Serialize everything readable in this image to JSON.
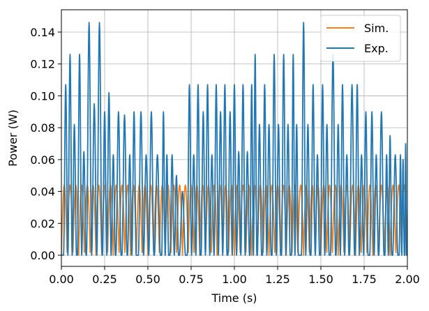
{
  "chart_data": {
    "type": "line",
    "xlabel": "Time (s)",
    "ylabel": "Power (W)",
    "xlim": [
      0,
      2
    ],
    "ylim": [
      -0.007,
      0.154
    ],
    "grid": true,
    "legend_position": "top-right",
    "x_ticks": [
      0,
      0.25,
      0.5,
      0.75,
      1.0,
      1.25,
      1.5,
      1.75,
      2.0
    ],
    "x_tick_labels": [
      "0.00",
      "0.25",
      "0.50",
      "0.75",
      "1.00",
      "1.25",
      "1.50",
      "1.75",
      "2.00"
    ],
    "y_ticks": [
      0,
      0.02,
      0.04,
      0.06,
      0.08,
      0.1,
      0.12,
      0.14
    ],
    "y_tick_labels": [
      "0.00",
      "0.02",
      "0.04",
      "0.06",
      "0.08",
      "0.10",
      "0.12",
      "0.14"
    ],
    "series": [
      {
        "name": "Sim.",
        "color": "#ff7f0e",
        "waveform": "rectified-sine",
        "amplitude": 0.044,
        "cycles": 60,
        "x_range": [
          0,
          2
        ]
      },
      {
        "name": "Exp.",
        "color": "#1f77b4",
        "peaks": [
          {
            "t": 0.025,
            "p": 0.107
          },
          {
            "t": 0.05,
            "p": 0.126
          },
          {
            "t": 0.075,
            "p": 0.082
          },
          {
            "t": 0.105,
            "p": 0.126
          },
          {
            "t": 0.13,
            "p": 0.065
          },
          {
            "t": 0.16,
            "p": 0.146
          },
          {
            "t": 0.19,
            "p": 0.095
          },
          {
            "t": 0.22,
            "p": 0.146
          },
          {
            "t": 0.25,
            "p": 0.09
          },
          {
            "t": 0.275,
            "p": 0.102
          },
          {
            "t": 0.3,
            "p": 0.063
          },
          {
            "t": 0.33,
            "p": 0.09
          },
          {
            "t": 0.365,
            "p": 0.088
          },
          {
            "t": 0.395,
            "p": 0.063
          },
          {
            "t": 0.42,
            "p": 0.09
          },
          {
            "t": 0.46,
            "p": 0.09
          },
          {
            "t": 0.49,
            "p": 0.063
          },
          {
            "t": 0.52,
            "p": 0.09
          },
          {
            "t": 0.555,
            "p": 0.063
          },
          {
            "t": 0.59,
            "p": 0.09
          },
          {
            "t": 0.61,
            "p": 0.063
          },
          {
            "t": 0.64,
            "p": 0.063
          },
          {
            "t": 0.665,
            "p": 0.05
          },
          {
            "t": 0.7,
            "p": 0.04
          },
          {
            "t": 0.74,
            "p": 0.107
          },
          {
            "t": 0.765,
            "p": 0.063
          },
          {
            "t": 0.79,
            "p": 0.107
          },
          {
            "t": 0.82,
            "p": 0.09
          },
          {
            "t": 0.845,
            "p": 0.107
          },
          {
            "t": 0.87,
            "p": 0.063
          },
          {
            "t": 0.895,
            "p": 0.107
          },
          {
            "t": 0.92,
            "p": 0.09
          },
          {
            "t": 0.945,
            "p": 0.107
          },
          {
            "t": 0.975,
            "p": 0.09
          },
          {
            "t": 1.0,
            "p": 0.107
          },
          {
            "t": 1.025,
            "p": 0.065
          },
          {
            "t": 1.05,
            "p": 0.107
          },
          {
            "t": 1.075,
            "p": 0.065
          },
          {
            "t": 1.1,
            "p": 0.107
          },
          {
            "t": 1.12,
            "p": 0.126
          },
          {
            "t": 1.145,
            "p": 0.082
          },
          {
            "t": 1.175,
            "p": 0.107
          },
          {
            "t": 1.2,
            "p": 0.082
          },
          {
            "t": 1.23,
            "p": 0.126
          },
          {
            "t": 1.255,
            "p": 0.082
          },
          {
            "t": 1.285,
            "p": 0.126
          },
          {
            "t": 1.31,
            "p": 0.082
          },
          {
            "t": 1.34,
            "p": 0.126
          },
          {
            "t": 1.36,
            "p": 0.082
          },
          {
            "t": 1.4,
            "p": 0.146
          },
          {
            "t": 1.425,
            "p": 0.082
          },
          {
            "t": 1.455,
            "p": 0.107
          },
          {
            "t": 1.48,
            "p": 0.063
          },
          {
            "t": 1.51,
            "p": 0.107
          },
          {
            "t": 1.535,
            "p": 0.082
          },
          {
            "t": 1.57,
            "p": 0.126
          },
          {
            "t": 1.6,
            "p": 0.082
          },
          {
            "t": 1.625,
            "p": 0.107
          },
          {
            "t": 1.65,
            "p": 0.063
          },
          {
            "t": 1.68,
            "p": 0.107
          },
          {
            "t": 1.71,
            "p": 0.107
          },
          {
            "t": 1.735,
            "p": 0.063
          },
          {
            "t": 1.76,
            "p": 0.09
          },
          {
            "t": 1.795,
            "p": 0.09
          },
          {
            "t": 1.82,
            "p": 0.063
          },
          {
            "t": 1.85,
            "p": 0.09
          },
          {
            "t": 1.88,
            "p": 0.063
          },
          {
            "t": 1.9,
            "p": 0.075
          },
          {
            "t": 1.93,
            "p": 0.063
          },
          {
            "t": 1.96,
            "p": 0.063
          },
          {
            "t": 1.975,
            "p": 0.06
          },
          {
            "t": 1.99,
            "p": 0.07
          }
        ]
      }
    ]
  }
}
